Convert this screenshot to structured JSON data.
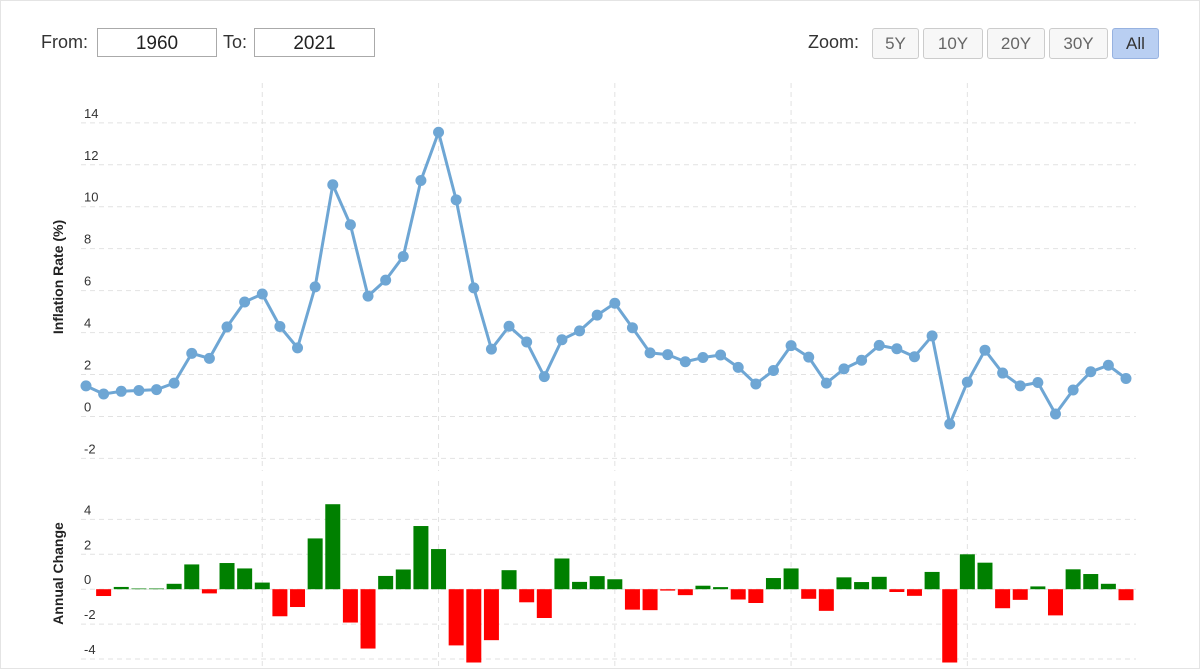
{
  "controls": {
    "from_label": "From:",
    "from_value": "1960",
    "to_label": "To:",
    "to_value": "2021",
    "zoom_label": "Zoom:",
    "zoom_buttons": [
      "5Y",
      "10Y",
      "20Y",
      "30Y",
      "All"
    ],
    "zoom_active": 4
  },
  "chart_data": [
    {
      "type": "line",
      "y_label": "Inflation Rate (%)",
      "color": "#6ea6d4",
      "values": [
        1.46,
        1.07,
        1.2,
        1.24,
        1.28,
        1.59,
        3.01,
        2.77,
        4.27,
        5.46,
        5.84,
        4.29,
        3.27,
        6.18,
        11.05,
        9.14,
        5.74,
        6.5,
        7.63,
        11.25,
        13.55,
        10.33,
        6.13,
        3.21,
        4.3,
        3.55,
        1.9,
        3.66,
        4.08,
        4.83,
        5.4,
        4.23,
        3.03,
        2.95,
        2.61,
        2.81,
        2.93,
        2.34,
        1.55,
        2.19,
        3.38,
        2.83,
        1.59,
        2.27,
        2.68,
        3.39,
        3.23,
        2.85,
        3.84,
        -0.36,
        1.64,
        3.16,
        2.07,
        1.46,
        1.62,
        0.12,
        1.26,
        2.13,
        2.44,
        1.81
      ],
      "ylim": [
        -2.6,
        15.9
      ],
      "yticks": [
        -2,
        0,
        2,
        4,
        6,
        8,
        10,
        12,
        14
      ],
      "grid": true
    },
    {
      "type": "bar",
      "y_label": "Annual Change",
      "color_positive": "#008000",
      "color_negative": "#ff0000",
      "values": [
        null,
        -0.39,
        0.13,
        0.04,
        0.04,
        0.31,
        1.42,
        -0.24,
        1.5,
        1.19,
        0.38,
        -1.55,
        -1.02,
        2.91,
        4.87,
        -1.91,
        -3.4,
        0.76,
        1.13,
        3.62,
        2.3,
        -3.22,
        -4.2,
        -2.92,
        1.09,
        -0.75,
        -1.65,
        1.76,
        0.42,
        0.75,
        0.57,
        -1.17,
        -1.2,
        -0.08,
        -0.34,
        0.2,
        0.12,
        -0.59,
        -0.79,
        0.64,
        1.19,
        -0.55,
        -1.24,
        0.68,
        0.41,
        0.71,
        -0.16,
        -0.38,
        0.99,
        -4.2,
        2.0,
        1.52,
        -1.09,
        -0.61,
        0.16,
        -1.5,
        1.14,
        0.87,
        0.31,
        -0.63
      ],
      "ylim": [
        -4.4,
        6.2
      ],
      "yticks": [
        -4,
        -2,
        0,
        2,
        4
      ],
      "grid": true
    }
  ]
}
